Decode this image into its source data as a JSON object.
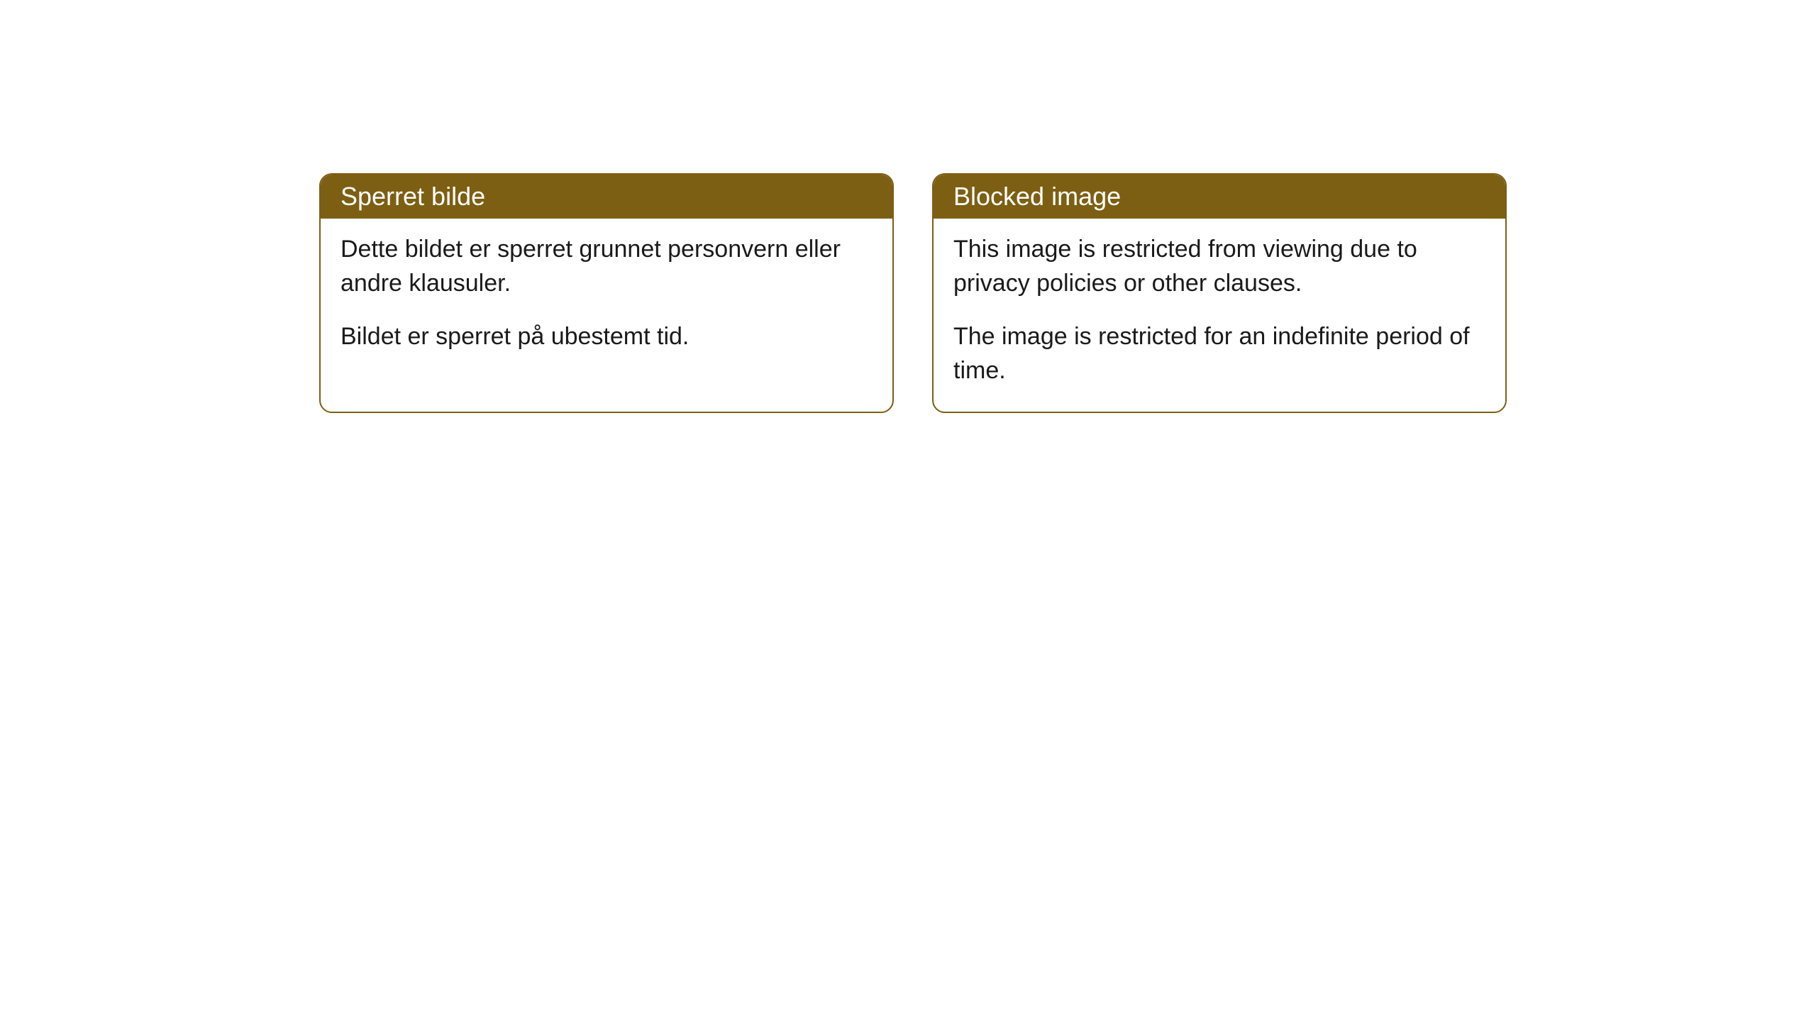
{
  "cards": [
    {
      "title": "Sperret bilde",
      "paragraph1": "Dette bildet er sperret grunnet personvern eller andre klausuler.",
      "paragraph2": "Bildet er sperret på ubestemt tid."
    },
    {
      "title": "Blocked image",
      "paragraph1": "This image is restricted from viewing due to privacy policies or other clauses.",
      "paragraph2": "The image is restricted for an indefinite period of time."
    }
  ],
  "styling": {
    "header_background": "#7d5f13",
    "header_text_color": "#ffffff",
    "border_color": "#7d5f13",
    "body_text_color": "#1a1a1a",
    "card_background": "#ffffff",
    "border_radius": 18,
    "header_fontsize": 36,
    "body_fontsize": 34
  }
}
